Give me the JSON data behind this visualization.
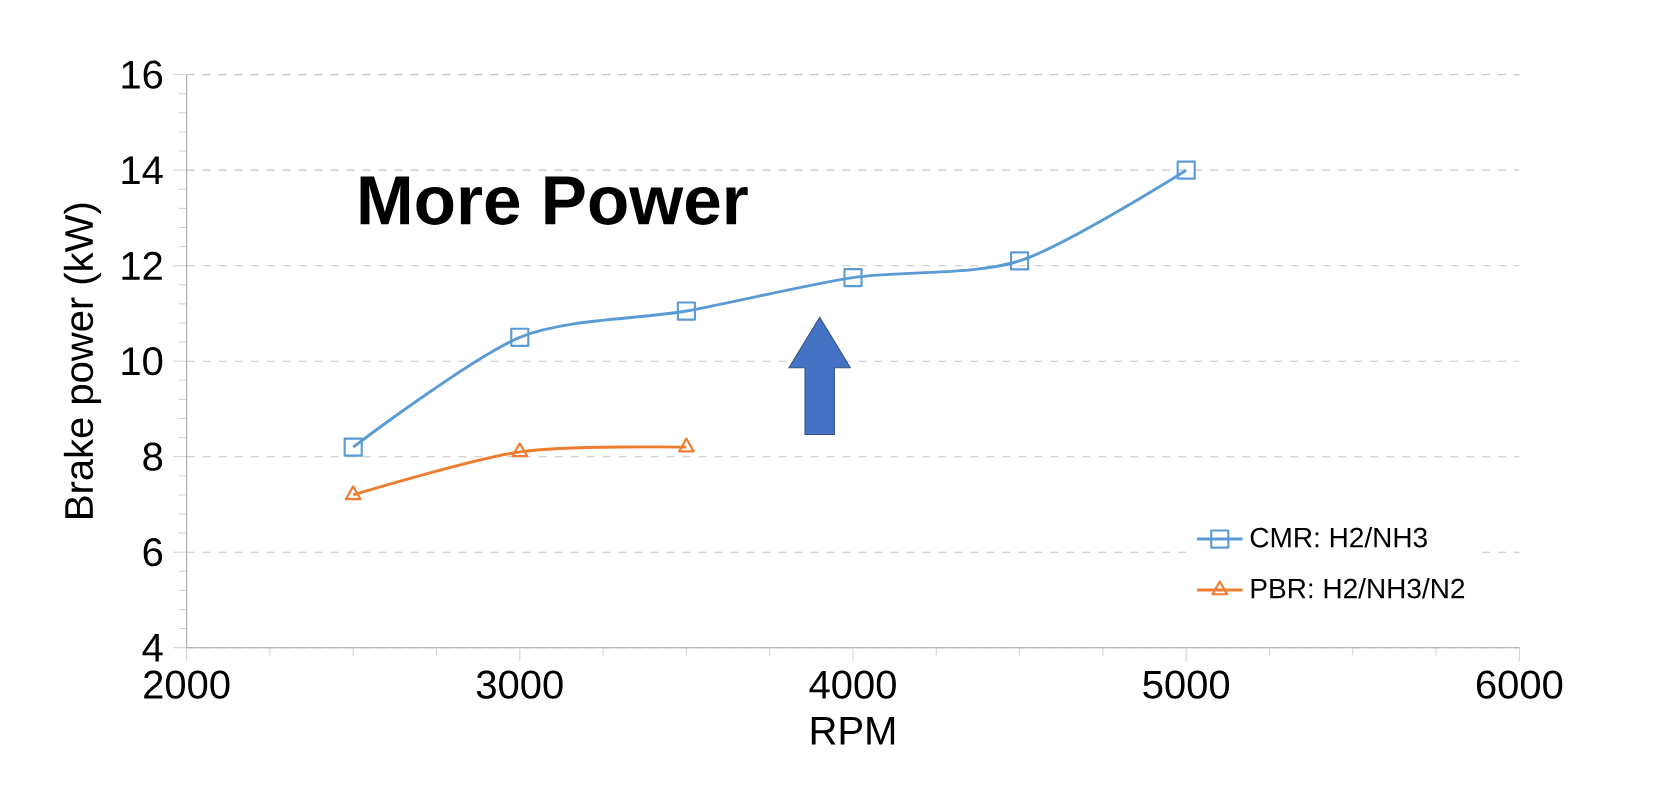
{
  "chart_data": {
    "type": "line",
    "xlabel": "RPM",
    "ylabel": "Brake power (kW)",
    "annotations": [
      "More Power"
    ],
    "xlim": [
      2000,
      6000
    ],
    "xticks": [
      2000,
      3000,
      4000,
      5000,
      6000
    ],
    "ylim": [
      4,
      16
    ],
    "yticks": [
      4,
      6,
      8,
      10,
      12,
      14,
      16
    ],
    "grid": "y",
    "legend": "bottom right",
    "line_style": "solid",
    "series": [
      {
        "name": "CMR: H2/NH3",
        "color": "#5b9bd5",
        "marker": "square",
        "x": [
          2500,
          3000,
          3500,
          4000,
          4500,
          5000
        ],
        "values": [
          8.2,
          10.5,
          11.05,
          11.75,
          12.1,
          14.0
        ]
      },
      {
        "name": "PBR: H2/NH3/N2",
        "color": "#ed7d31",
        "marker": "triangle",
        "x": [
          2500,
          3000,
          3500
        ],
        "values": [
          7.2,
          8.1,
          8.2
        ]
      }
    ]
  }
}
